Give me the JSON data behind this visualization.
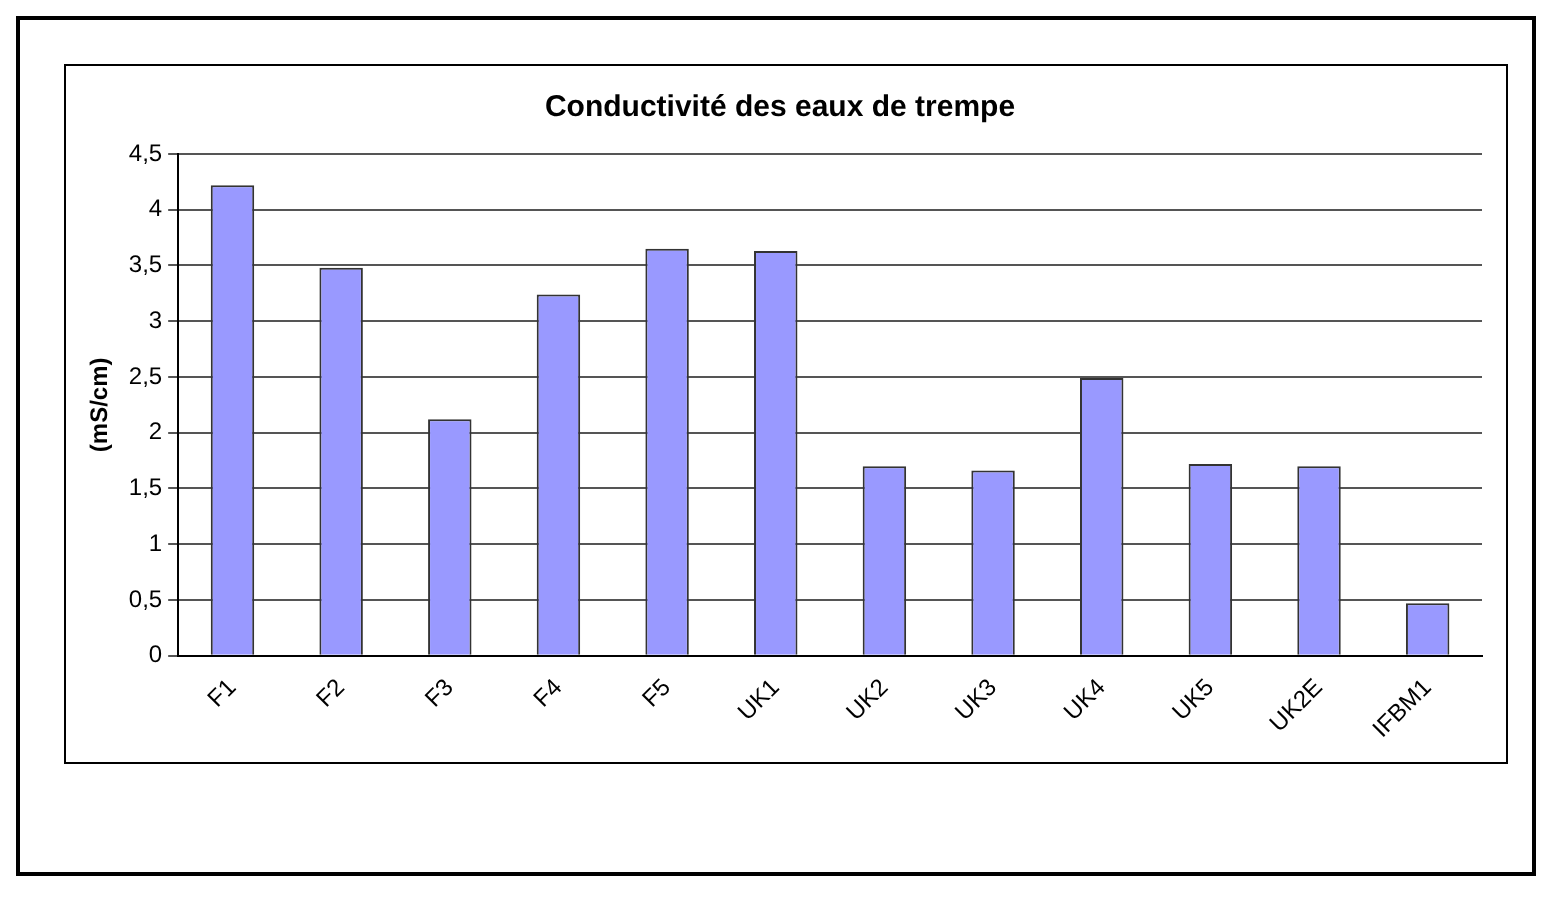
{
  "chart_data": {
    "type": "bar",
    "title": "Conductivité des eaux de trempe",
    "ylabel": "(mS/cm)",
    "categories": [
      "F1",
      "F2",
      "F3",
      "F4",
      "F5",
      "UK1",
      "UK2",
      "UK3",
      "UK4",
      "UK5",
      "UK2E",
      "IFBM1"
    ],
    "values": [
      4.22,
      3.48,
      2.12,
      3.24,
      3.65,
      3.63,
      1.7,
      1.66,
      2.49,
      1.72,
      1.7,
      0.47
    ],
    "color": "#9999ff",
    "ylim": [
      0,
      4.5
    ],
    "yticks": [
      0,
      {
        "value": 0.5,
        "label": "0,5"
      },
      1,
      {
        "value": 1.5,
        "label": "1,5"
      },
      2,
      {
        "value": 2.5,
        "label": "2,5"
      },
      3,
      {
        "value": 3.5,
        "label": "3,5"
      },
      4,
      {
        "value": 4.5,
        "label": "4,5"
      }
    ],
    "grid": "y",
    "legend": false
  }
}
